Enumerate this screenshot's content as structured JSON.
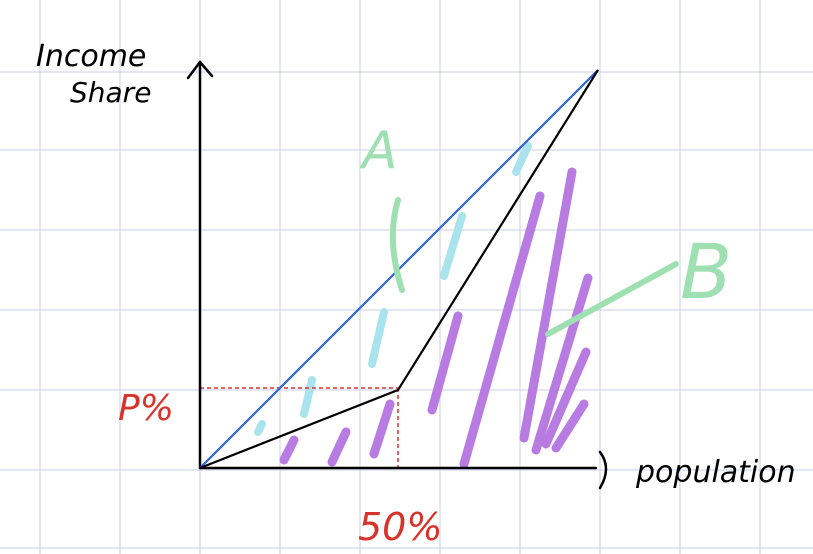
{
  "labels": {
    "y_axis_line1": "Income",
    "y_axis_line2": "Share",
    "x_axis": "population",
    "region_a": "A",
    "region_b": "B",
    "y_marker": "P%",
    "x_marker": "50%"
  },
  "colors": {
    "grid": "#c9cce6",
    "axis": "#000000",
    "equality_line": "#2b63d8",
    "lorenz_curve": "#000000",
    "guide_lines": "#d8332a",
    "marker_text": "#d8332a",
    "region_a_hatch": "#a9e3ee",
    "region_b_hatch": "#b77be2",
    "annotation": "#9fe0b2"
  }
}
